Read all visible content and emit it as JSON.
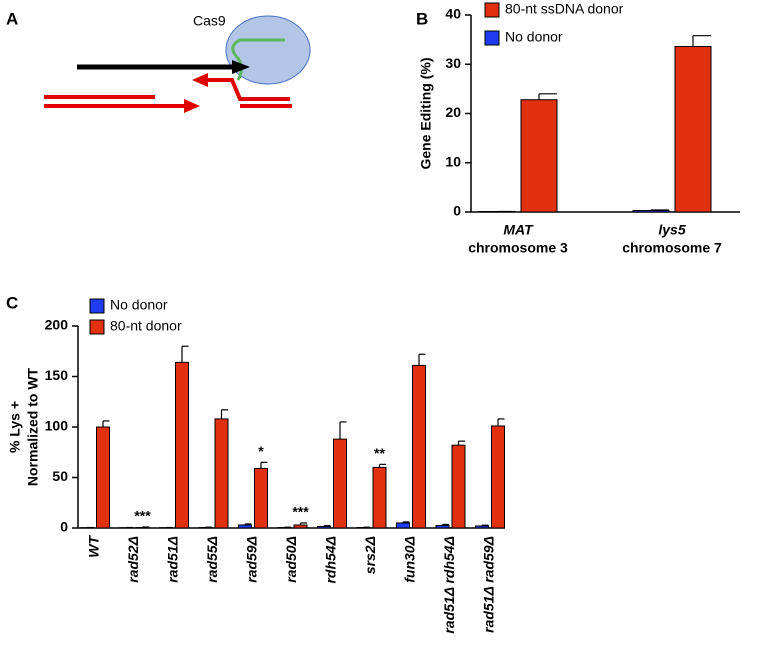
{
  "panels": [
    "A",
    "B",
    "C"
  ],
  "diagram": {
    "label": "Cas9"
  },
  "chart_data": [
    {
      "type": "bar",
      "ylabel": "Gene Editing (%)",
      "categories": [
        "MAT",
        "lys5"
      ],
      "category_sublabels": [
        "chromosome 3",
        "chromosome 7"
      ],
      "series": [
        {
          "name": "80-nt ssDNA donor",
          "color": "#e0300f",
          "values": [
            22.8,
            33.6
          ],
          "errors": [
            1.2,
            2.2
          ]
        },
        {
          "name": "No donor",
          "color": "#1f3cf0",
          "values": [
            0.1,
            0.3
          ],
          "errors": [
            0,
            0.1
          ]
        }
      ],
      "ylim": [
        0,
        40
      ],
      "yticks": [
        0,
        10,
        20,
        30,
        40
      ],
      "grid": false
    },
    {
      "type": "bar",
      "ylabel": [
        "% Lys +",
        "Normalized to WT"
      ],
      "categories": [
        "WT",
        "rad52Δ",
        "rad51Δ",
        "rad55Δ",
        "rad59Δ",
        "rad50Δ",
        "rdh54Δ",
        "srs2Δ",
        "fun30Δ",
        "rad51Δ rdh54Δ",
        "rad51Δ rad59Δ"
      ],
      "series": [
        {
          "name": "No donor",
          "color": "#1f3cf0",
          "values": [
            0.3,
            0.3,
            0.3,
            0.5,
            3,
            0.5,
            1.5,
            0.5,
            5,
            2.5,
            2
          ],
          "errors": [
            0.2,
            0.2,
            0.2,
            0.3,
            1,
            0.3,
            0.8,
            0.3,
            1,
            1,
            0.8
          ]
        },
        {
          "name": "80-nt donor",
          "color": "#e0300f",
          "values": [
            100,
            0.5,
            164,
            108,
            59,
            3,
            88,
            60,
            161,
            82,
            101
          ],
          "errors": [
            6,
            0.5,
            16,
            9,
            6,
            2,
            17,
            3,
            11,
            4,
            7
          ]
        }
      ],
      "annotations": [
        {
          "category": "rad52Δ",
          "text": "***"
        },
        {
          "category": "rad59Δ",
          "text": "*"
        },
        {
          "category": "rad50Δ",
          "text": "***"
        },
        {
          "category": "srs2Δ",
          "text": "**"
        }
      ],
      "ylim": [
        0,
        200
      ],
      "yticks": [
        0,
        50,
        100,
        150,
        200
      ],
      "grid": false
    }
  ]
}
